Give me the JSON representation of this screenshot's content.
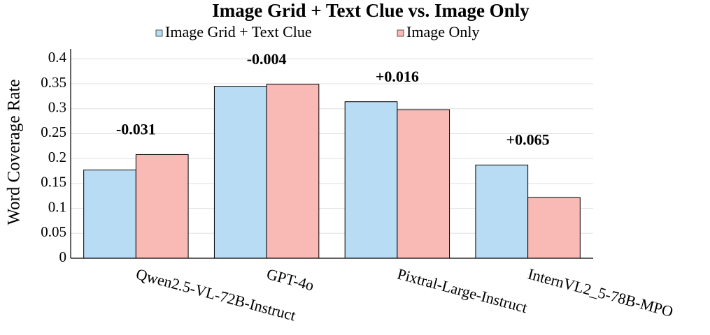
{
  "chart_data": {
    "type": "bar",
    "title": "Image Grid + Text Clue vs. Image Only",
    "y_label": "Word Coverage Rate",
    "categories": [
      "Qwen2.5-VL-72B-Instruct",
      "GPT-4o",
      "Pixtral-Large-Instruct",
      "InternVL2_5-78B-MPO"
    ],
    "series": [
      {
        "name": "Image Grid + Text Clue",
        "color": "#b8dcf4",
        "values": [
          0.177,
          0.345,
          0.314,
          0.187
        ]
      },
      {
        "name": "Image Only",
        "color": "#f9bab6",
        "values": [
          0.208,
          0.349,
          0.298,
          0.122
        ]
      }
    ],
    "annotations": [
      "-0.031",
      "-0.004",
      "+0.016",
      "+0.065"
    ],
    "ylim": [
      0,
      0.42
    ],
    "yticks": [
      0,
      0.05,
      0.1,
      0.15,
      0.2,
      0.25,
      0.3,
      0.35,
      0.4
    ],
    "grid": true
  }
}
